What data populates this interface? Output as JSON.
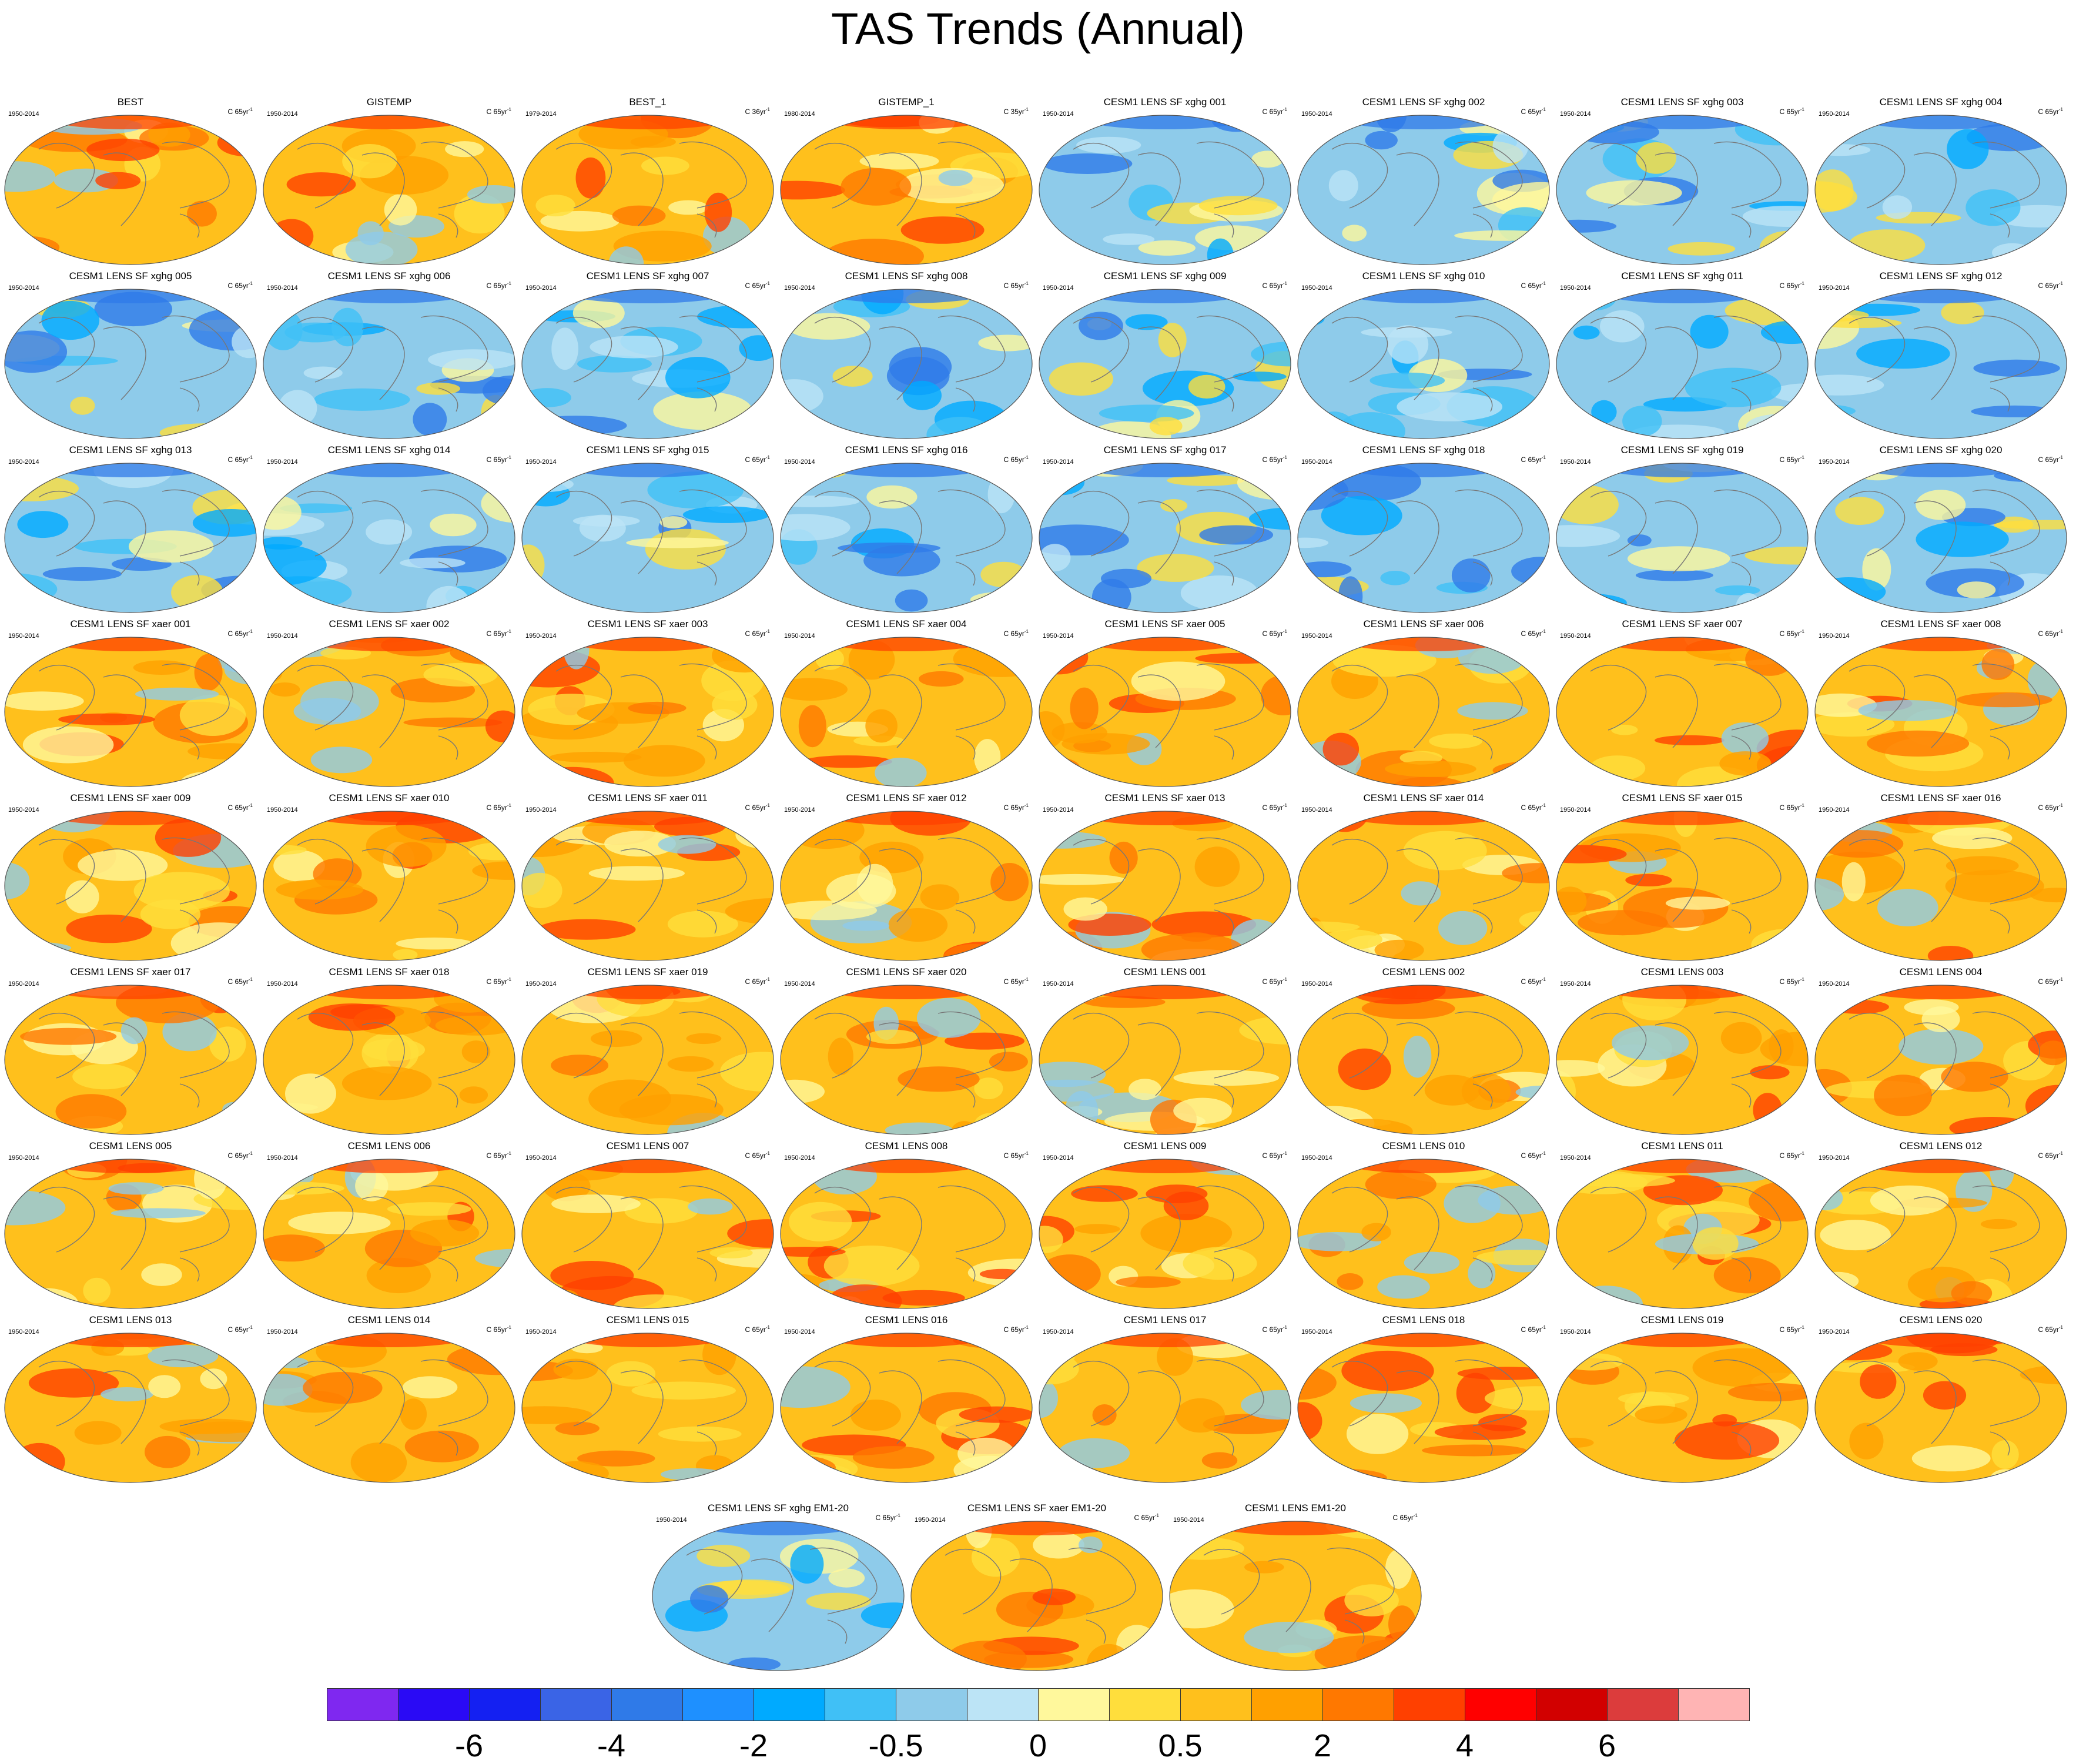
{
  "title": "TAS Trends (Annual)",
  "chart_data": {
    "type": "heatmap",
    "variable": "TAS",
    "projection": "world map (elliptical)",
    "colorbar": {
      "colors": [
        "#7f28f0",
        "#2a0af5",
        "#1420f2",
        "#3a64e6",
        "#2f7ae8",
        "#1e90ff",
        "#00aaff",
        "#40c0f6",
        "#8ecbea",
        "#bce4f6",
        "#fff89c",
        "#ffde3c",
        "#ffc01c",
        "#ffa000",
        "#ff7800",
        "#ff4000",
        "#ff0000",
        "#d20000",
        "#dc3c3c",
        "#ffb4b4"
      ],
      "tick_labels": [
        {
          "boundary": 2,
          "text": "-6"
        },
        {
          "boundary": 4,
          "text": "-4"
        },
        {
          "boundary": 6,
          "text": "-2"
        },
        {
          "boundary": 8,
          "text": "-0.5"
        },
        {
          "boundary": 10,
          "text": "0"
        },
        {
          "boundary": 12,
          "text": "0.5"
        },
        {
          "boundary": 14,
          "text": "2"
        },
        {
          "boundary": 16,
          "text": "4"
        },
        {
          "boundary": 18,
          "text": "6"
        }
      ]
    },
    "panels": [
      {
        "title": "BEST",
        "period": "1950-2014",
        "units": "C 65yr",
        "tone": "warm"
      },
      {
        "title": "GISTEMP",
        "period": "1950-2014",
        "units": "C 65yr",
        "tone": "warm"
      },
      {
        "title": "BEST_1",
        "period": "1979-2014",
        "units": "C 36yr",
        "tone": "warm"
      },
      {
        "title": "GISTEMP_1",
        "period": "1980-2014",
        "units": "C 35yr",
        "tone": "warm"
      },
      {
        "title": "CESM1 LENS SF xghg 001",
        "period": "1950-2014",
        "units": "C 65yr",
        "tone": "cool"
      },
      {
        "title": "CESM1 LENS SF xghg 002",
        "period": "1950-2014",
        "units": "C 65yr",
        "tone": "cool"
      },
      {
        "title": "CESM1 LENS SF xghg 003",
        "period": "1950-2014",
        "units": "C 65yr",
        "tone": "cool"
      },
      {
        "title": "CESM1 LENS SF xghg 004",
        "period": "1950-2014",
        "units": "C 65yr",
        "tone": "cool"
      },
      {
        "title": "CESM1 LENS SF xghg 005",
        "period": "1950-2014",
        "units": "C 65yr",
        "tone": "cool"
      },
      {
        "title": "CESM1 LENS SF xghg 006",
        "period": "1950-2014",
        "units": "C 65yr",
        "tone": "cool"
      },
      {
        "title": "CESM1 LENS SF xghg 007",
        "period": "1950-2014",
        "units": "C 65yr",
        "tone": "cool"
      },
      {
        "title": "CESM1 LENS SF xghg 008",
        "period": "1950-2014",
        "units": "C 65yr",
        "tone": "cool"
      },
      {
        "title": "CESM1 LENS SF xghg 009",
        "period": "1950-2014",
        "units": "C 65yr",
        "tone": "cool"
      },
      {
        "title": "CESM1 LENS SF xghg 010",
        "period": "1950-2014",
        "units": "C 65yr",
        "tone": "cool"
      },
      {
        "title": "CESM1 LENS SF xghg 011",
        "period": "1950-2014",
        "units": "C 65yr",
        "tone": "cool"
      },
      {
        "title": "CESM1 LENS SF xghg 012",
        "period": "1950-2014",
        "units": "C 65yr",
        "tone": "cool"
      },
      {
        "title": "CESM1 LENS SF xghg 013",
        "period": "1950-2014",
        "units": "C 65yr",
        "tone": "cool"
      },
      {
        "title": "CESM1 LENS SF xghg 014",
        "period": "1950-2014",
        "units": "C 65yr",
        "tone": "cool"
      },
      {
        "title": "CESM1 LENS SF xghg 015",
        "period": "1950-2014",
        "units": "C 65yr",
        "tone": "cool"
      },
      {
        "title": "CESM1 LENS SF xghg 016",
        "period": "1950-2014",
        "units": "C 65yr",
        "tone": "cool"
      },
      {
        "title": "CESM1 LENS SF xghg 017",
        "period": "1950-2014",
        "units": "C 65yr",
        "tone": "cool"
      },
      {
        "title": "CESM1 LENS SF xghg 018",
        "period": "1950-2014",
        "units": "C 65yr",
        "tone": "cool"
      },
      {
        "title": "CESM1 LENS SF xghg 019",
        "period": "1950-2014",
        "units": "C 65yr",
        "tone": "cool"
      },
      {
        "title": "CESM1 LENS SF xghg 020",
        "period": "1950-2014",
        "units": "C 65yr",
        "tone": "cool"
      },
      {
        "title": "CESM1 LENS SF xaer 001",
        "period": "1950-2014",
        "units": "C 65yr",
        "tone": "warm"
      },
      {
        "title": "CESM1 LENS SF xaer 002",
        "period": "1950-2014",
        "units": "C 65yr",
        "tone": "warm"
      },
      {
        "title": "CESM1 LENS SF xaer 003",
        "period": "1950-2014",
        "units": "C 65yr",
        "tone": "warm"
      },
      {
        "title": "CESM1 LENS SF xaer 004",
        "period": "1950-2014",
        "units": "C 65yr",
        "tone": "warm"
      },
      {
        "title": "CESM1 LENS SF xaer 005",
        "period": "1950-2014",
        "units": "C 65yr",
        "tone": "warm"
      },
      {
        "title": "CESM1 LENS SF xaer 006",
        "period": "1950-2014",
        "units": "C 65yr",
        "tone": "warm"
      },
      {
        "title": "CESM1 LENS SF xaer 007",
        "period": "1950-2014",
        "units": "C 65yr",
        "tone": "warm"
      },
      {
        "title": "CESM1 LENS SF xaer 008",
        "period": "1950-2014",
        "units": "C 65yr",
        "tone": "warm"
      },
      {
        "title": "CESM1 LENS SF xaer 009",
        "period": "1950-2014",
        "units": "C 65yr",
        "tone": "warm"
      },
      {
        "title": "CESM1 LENS SF xaer 010",
        "period": "1950-2014",
        "units": "C 65yr",
        "tone": "warm"
      },
      {
        "title": "CESM1 LENS SF xaer 011",
        "period": "1950-2014",
        "units": "C 65yr",
        "tone": "warm"
      },
      {
        "title": "CESM1 LENS SF xaer 012",
        "period": "1950-2014",
        "units": "C 65yr",
        "tone": "warm"
      },
      {
        "title": "CESM1 LENS SF xaer 013",
        "period": "1950-2014",
        "units": "C 65yr",
        "tone": "warm"
      },
      {
        "title": "CESM1 LENS SF xaer 014",
        "period": "1950-2014",
        "units": "C 65yr",
        "tone": "warm"
      },
      {
        "title": "CESM1 LENS SF xaer 015",
        "period": "1950-2014",
        "units": "C 65yr",
        "tone": "warm"
      },
      {
        "title": "CESM1 LENS SF xaer 016",
        "period": "1950-2014",
        "units": "C 65yr",
        "tone": "warm"
      },
      {
        "title": "CESM1 LENS SF xaer 017",
        "period": "1950-2014",
        "units": "C 65yr",
        "tone": "warm"
      },
      {
        "title": "CESM1 LENS SF xaer 018",
        "period": "1950-2014",
        "units": "C 65yr",
        "tone": "warm"
      },
      {
        "title": "CESM1 LENS SF xaer 019",
        "period": "1950-2014",
        "units": "C 65yr",
        "tone": "warm"
      },
      {
        "title": "CESM1 LENS SF xaer 020",
        "period": "1950-2014",
        "units": "C 65yr",
        "tone": "warm"
      },
      {
        "title": "CESM1 LENS 001",
        "period": "1950-2014",
        "units": "C 65yr",
        "tone": "warm"
      },
      {
        "title": "CESM1 LENS 002",
        "period": "1950-2014",
        "units": "C 65yr",
        "tone": "warm"
      },
      {
        "title": "CESM1 LENS 003",
        "period": "1950-2014",
        "units": "C 65yr",
        "tone": "warm"
      },
      {
        "title": "CESM1 LENS 004",
        "period": "1950-2014",
        "units": "C 65yr",
        "tone": "warm"
      },
      {
        "title": "CESM1 LENS 005",
        "period": "1950-2014",
        "units": "C 65yr",
        "tone": "warm"
      },
      {
        "title": "CESM1 LENS 006",
        "period": "1950-2014",
        "units": "C 65yr",
        "tone": "warm"
      },
      {
        "title": "CESM1 LENS 007",
        "period": "1950-2014",
        "units": "C 65yr",
        "tone": "warm"
      },
      {
        "title": "CESM1 LENS 008",
        "period": "1950-2014",
        "units": "C 65yr",
        "tone": "warm"
      },
      {
        "title": "CESM1 LENS 009",
        "period": "1950-2014",
        "units": "C 65yr",
        "tone": "warm"
      },
      {
        "title": "CESM1 LENS 010",
        "period": "1950-2014",
        "units": "C 65yr",
        "tone": "warm"
      },
      {
        "title": "CESM1 LENS 011",
        "period": "1950-2014",
        "units": "C 65yr",
        "tone": "warm"
      },
      {
        "title": "CESM1 LENS 012",
        "period": "1950-2014",
        "units": "C 65yr",
        "tone": "warm"
      },
      {
        "title": "CESM1 LENS 013",
        "period": "1950-2014",
        "units": "C 65yr",
        "tone": "warm"
      },
      {
        "title": "CESM1 LENS 014",
        "period": "1950-2014",
        "units": "C 65yr",
        "tone": "warm"
      },
      {
        "title": "CESM1 LENS 015",
        "period": "1950-2014",
        "units": "C 65yr",
        "tone": "warm"
      },
      {
        "title": "CESM1 LENS 016",
        "period": "1950-2014",
        "units": "C 65yr",
        "tone": "warm"
      },
      {
        "title": "CESM1 LENS 017",
        "period": "1950-2014",
        "units": "C 65yr",
        "tone": "warm"
      },
      {
        "title": "CESM1 LENS 018",
        "period": "1950-2014",
        "units": "C 65yr",
        "tone": "warm"
      },
      {
        "title": "CESM1 LENS 019",
        "period": "1950-2014",
        "units": "C 65yr",
        "tone": "warm"
      },
      {
        "title": "CESM1 LENS 020",
        "period": "1950-2014",
        "units": "C 65yr",
        "tone": "warm"
      },
      {
        "title": "CESM1 LENS SF xghg EM1-20",
        "period": "1950-2014",
        "units": "C 65yr",
        "tone": "cool"
      },
      {
        "title": "CESM1 LENS SF xaer EM1-20",
        "period": "1950-2014",
        "units": "C 65yr",
        "tone": "warm"
      },
      {
        "title": "CESM1 LENS EM1-20",
        "period": "1950-2014",
        "units": "C 65yr",
        "tone": "warm"
      }
    ]
  }
}
